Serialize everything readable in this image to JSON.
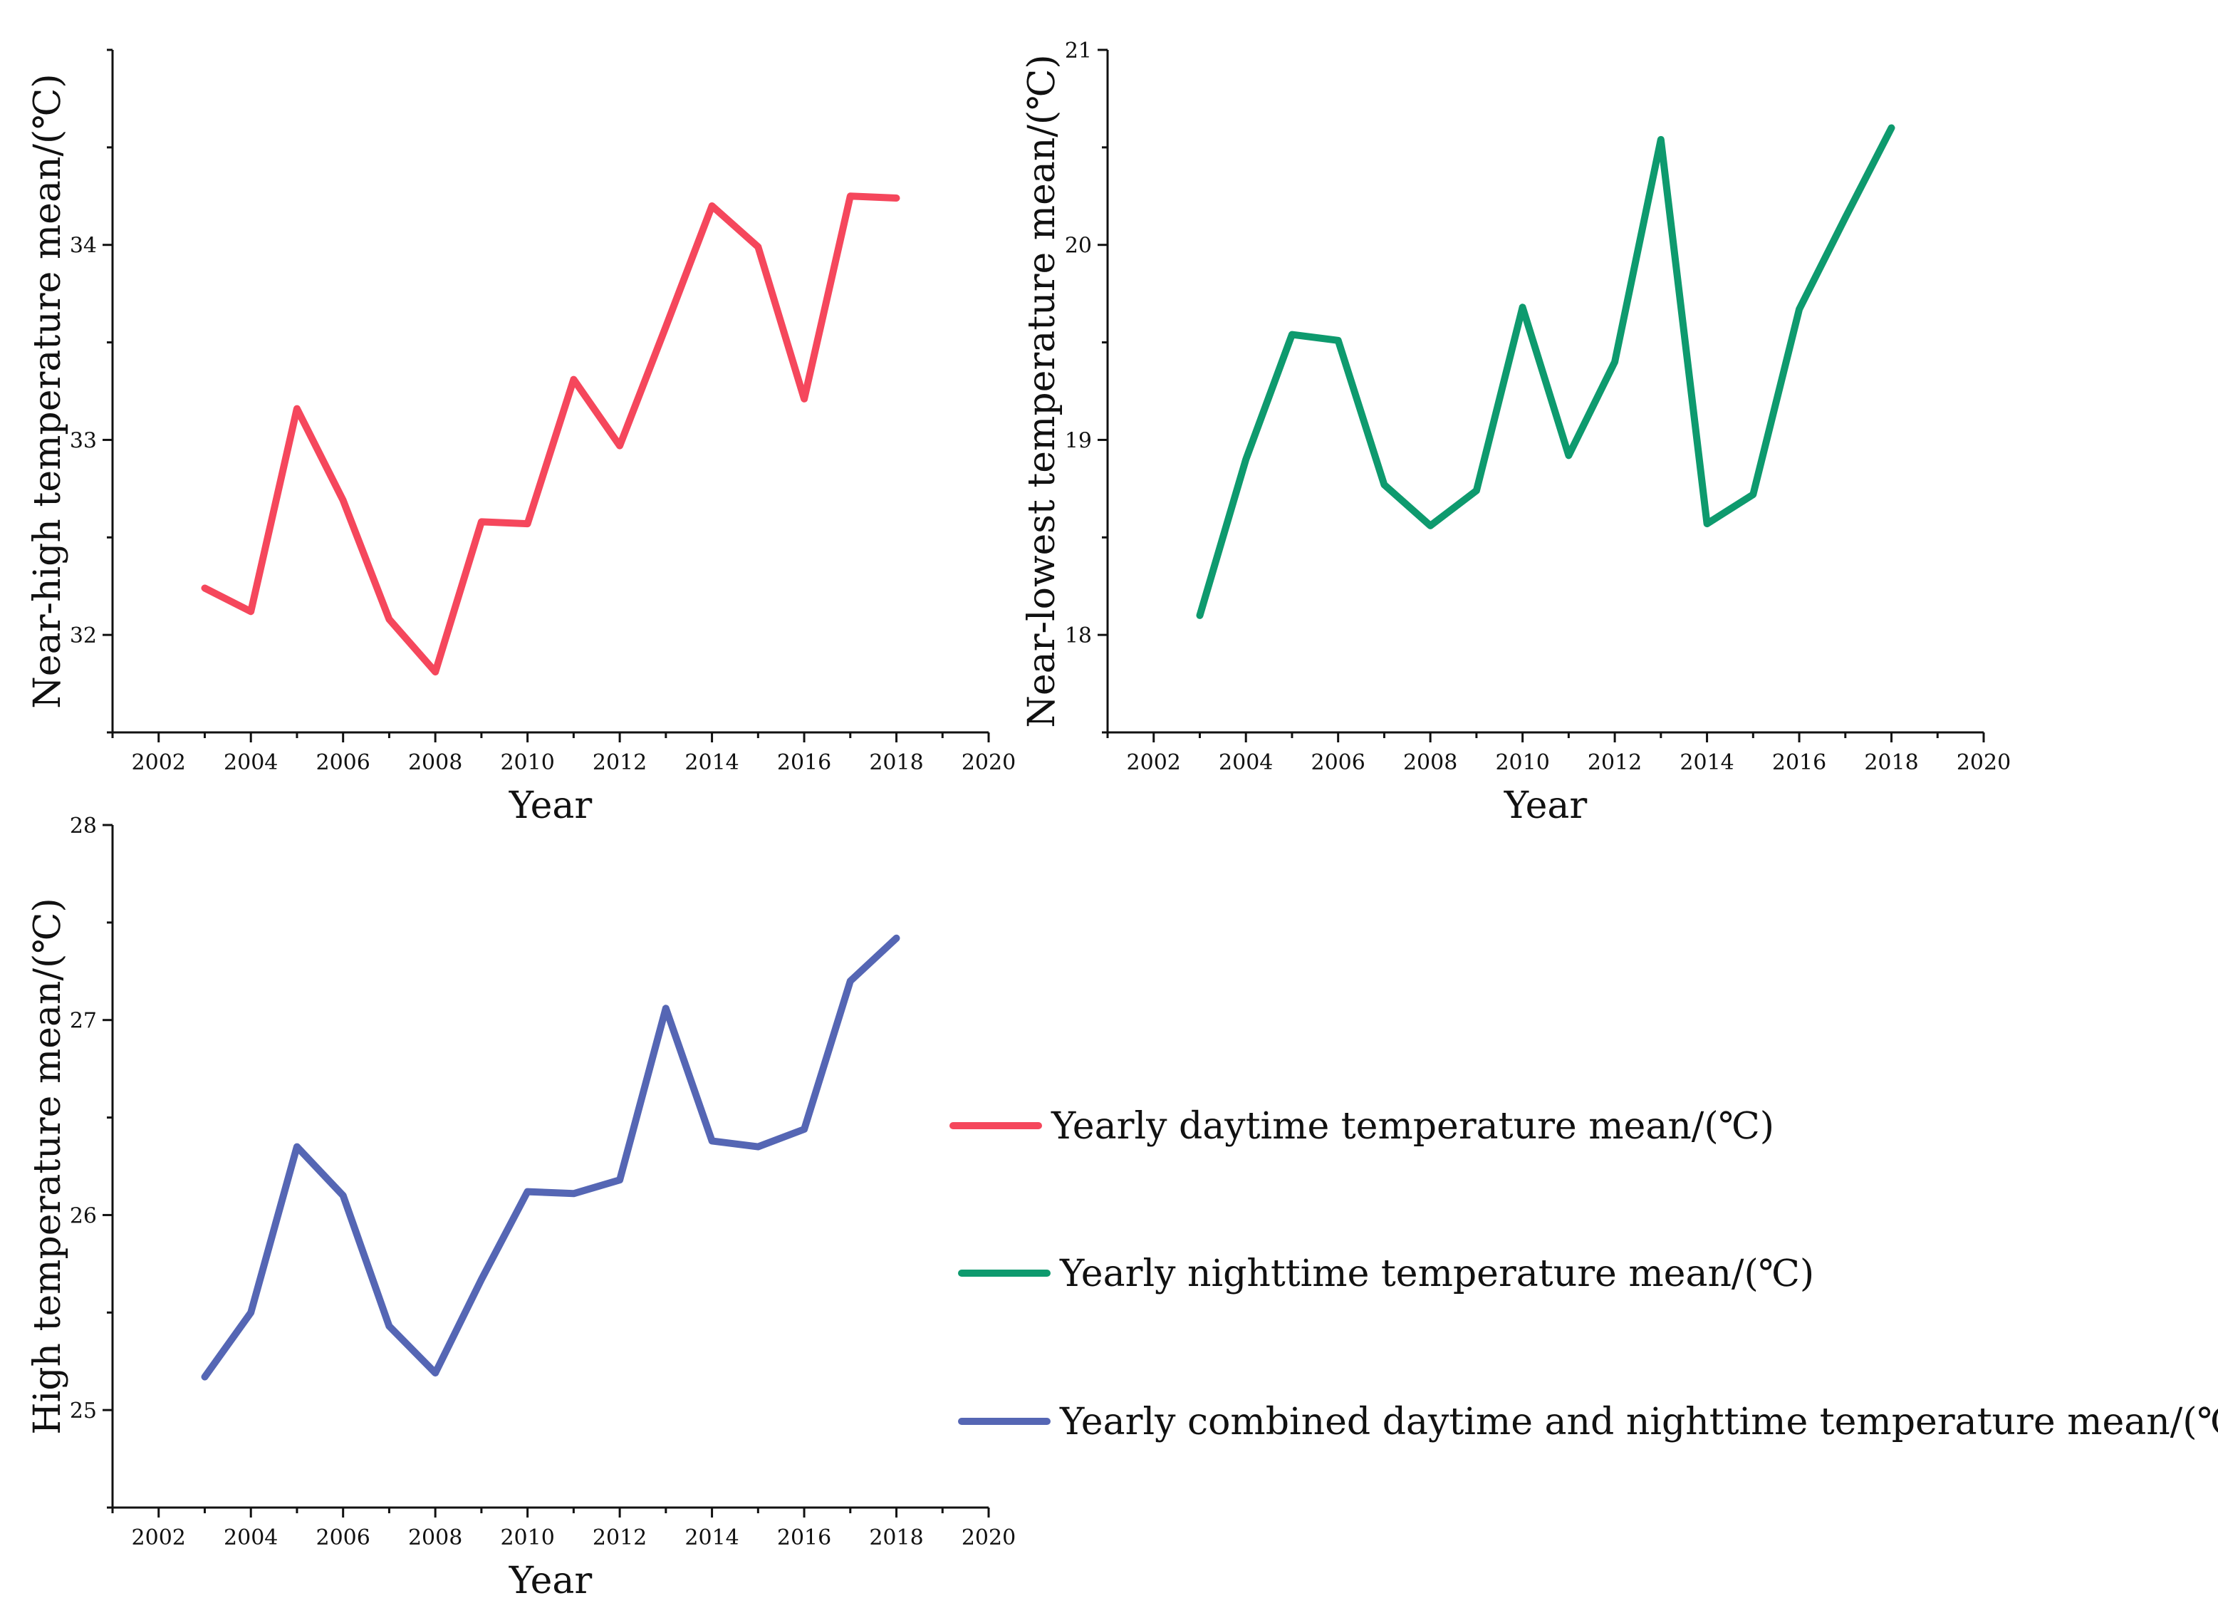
{
  "chart_data": [
    {
      "type": "line",
      "xlabel": "Year",
      "ylabel": "Near-high temperature mean/(℃)",
      "xlim": [
        2001,
        2020
      ],
      "ylim": [
        31.5,
        35.0
      ],
      "xticks": [
        2002,
        2004,
        2006,
        2008,
        2010,
        2012,
        2014,
        2016,
        2018,
        2020
      ],
      "yticks": [
        32,
        33,
        34
      ],
      "series": [
        {
          "name": "Yearly daytime temperature mean/(℃)",
          "color": "#F5475C",
          "x": [
            2003,
            2004,
            2005,
            2006,
            2007,
            2008,
            2009,
            2010,
            2011,
            2012,
            2013,
            2014,
            2015,
            2016,
            2017,
            2018
          ],
          "values": [
            32.24,
            32.12,
            33.16,
            32.69,
            32.08,
            31.81,
            32.58,
            32.57,
            33.31,
            32.97,
            33.58,
            34.2,
            33.99,
            33.21,
            34.25,
            34.24
          ]
        }
      ]
    },
    {
      "type": "line",
      "xlabel": "Year",
      "ylabel": "Near-lowest temperature mean/(℃)",
      "xlim": [
        2001,
        2020
      ],
      "ylim": [
        17.5,
        21.0
      ],
      "xticks": [
        2002,
        2004,
        2006,
        2008,
        2010,
        2012,
        2014,
        2016,
        2018,
        2020
      ],
      "yticks": [
        18,
        19,
        20,
        21
      ],
      "series": [
        {
          "name": "Yearly nighttime temperature mean/(℃)",
          "color": "#0E9A6E",
          "x": [
            2003,
            2004,
            2005,
            2006,
            2007,
            2008,
            2009,
            2010,
            2011,
            2012,
            2013,
            2014,
            2015,
            2016,
            2017,
            2018
          ],
          "values": [
            18.1,
            18.9,
            19.54,
            19.51,
            18.77,
            18.56,
            18.74,
            19.68,
            18.92,
            19.4,
            20.54,
            18.57,
            18.72,
            19.67,
            20.14,
            20.6
          ]
        }
      ]
    },
    {
      "type": "line",
      "xlabel": "Year",
      "ylabel": "High temperature mean/(℃)",
      "xlim": [
        2001,
        2020
      ],
      "ylim": [
        24.5,
        28.0
      ],
      "xticks": [
        2002,
        2004,
        2006,
        2008,
        2010,
        2012,
        2014,
        2016,
        2018,
        2020
      ],
      "yticks": [
        25,
        26,
        27,
        28
      ],
      "series": [
        {
          "name": "Yearly combined daytime and nighttime temperature mean/(℃)",
          "color": "#5566B4",
          "x": [
            2003,
            2004,
            2005,
            2006,
            2007,
            2008,
            2009,
            2010,
            2011,
            2012,
            2013,
            2014,
            2015,
            2016,
            2017,
            2018
          ],
          "values": [
            25.17,
            25.5,
            26.35,
            26.1,
            25.43,
            25.19,
            25.67,
            26.12,
            26.11,
            26.18,
            27.06,
            26.38,
            26.35,
            26.44,
            27.2,
            27.42
          ]
        }
      ]
    }
  ],
  "legend": {
    "items": [
      {
        "label": "Yearly daytime temperature mean/(℃)",
        "color": "#F5475C"
      },
      {
        "label": "Yearly nighttime temperature mean/(℃)",
        "color": "#0E9A6E"
      },
      {
        "label": "Yearly combined daytime and nighttime temperature mean/(℃)",
        "color": "#5566B4"
      }
    ]
  }
}
